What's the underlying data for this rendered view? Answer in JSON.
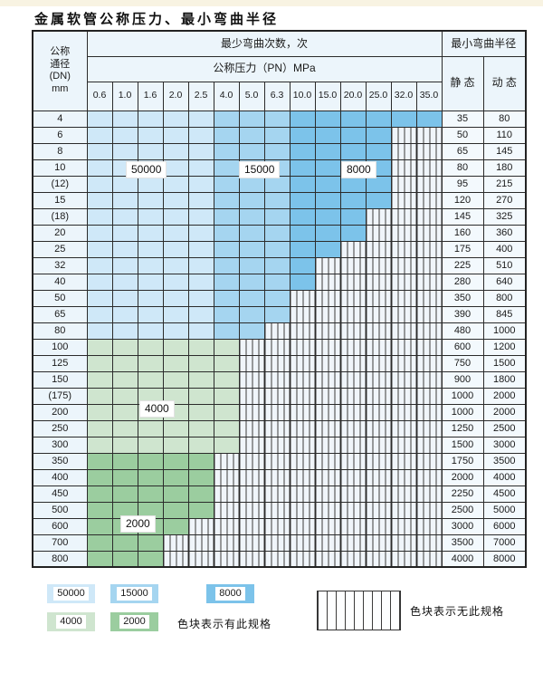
{
  "title": "金属软管公称压力、最小弯曲半径",
  "colors": {
    "b1": "#cfe8f8",
    "b2": "#a5d5f0",
    "b3": "#7cc3ea",
    "g1": "#cfe5cf",
    "g2": "#9bcd9f",
    "hatch_bg": "#f0f5fa",
    "header_bg": "#ecf5fb",
    "grid": "#2b2b2b"
  },
  "table": {
    "dn_head": {
      "l1": "公称",
      "l2": "通径",
      "l3": "(DN)",
      "l4": "mm"
    },
    "bend_cycles_header": "最少弯曲次数，次",
    "pressure_header": "公称压力（PN）MPa",
    "min_radius_header": "最小弯曲半径",
    "static_header": "静 态",
    "dynamic_header": "动 态",
    "pressure_columns": [
      "0.6",
      "1.0",
      "1.6",
      "2.0",
      "2.5",
      "4.0",
      "5.0",
      "6.3",
      "10.0",
      "15.0",
      "20.0",
      "25.0",
      "32.0",
      "35.0"
    ],
    "rows": [
      {
        "dn": "4",
        "bands": [
          [
            "b1",
            5
          ],
          [
            "b2",
            3
          ],
          [
            "b3",
            6
          ]
        ],
        "static": "35",
        "dynamic": "80"
      },
      {
        "dn": "6",
        "bands": [
          [
            "b1",
            5
          ],
          [
            "b2",
            3
          ],
          [
            "b3",
            4
          ],
          [
            "h",
            2
          ]
        ],
        "static": "50",
        "dynamic": "110"
      },
      {
        "dn": "8",
        "bands": [
          [
            "b1",
            5
          ],
          [
            "b2",
            3
          ],
          [
            "b3",
            4
          ],
          [
            "h",
            2
          ]
        ],
        "static": "65",
        "dynamic": "145"
      },
      {
        "dn": "10",
        "bands": [
          [
            "b1",
            5
          ],
          [
            "b2",
            3
          ],
          [
            "b3",
            4
          ],
          [
            "h",
            2
          ]
        ],
        "static": "80",
        "dynamic": "180"
      },
      {
        "dn": "(12)",
        "bands": [
          [
            "b1",
            5
          ],
          [
            "b2",
            3
          ],
          [
            "b3",
            4
          ],
          [
            "h",
            2
          ]
        ],
        "static": "95",
        "dynamic": "215"
      },
      {
        "dn": "15",
        "bands": [
          [
            "b1",
            5
          ],
          [
            "b2",
            3
          ],
          [
            "b3",
            4
          ],
          [
            "h",
            2
          ]
        ],
        "static": "120",
        "dynamic": "270"
      },
      {
        "dn": "(18)",
        "bands": [
          [
            "b1",
            5
          ],
          [
            "b2",
            3
          ],
          [
            "b3",
            3
          ],
          [
            "h",
            3
          ]
        ],
        "static": "145",
        "dynamic": "325"
      },
      {
        "dn": "20",
        "bands": [
          [
            "b1",
            5
          ],
          [
            "b2",
            3
          ],
          [
            "b3",
            3
          ],
          [
            "h",
            3
          ]
        ],
        "static": "160",
        "dynamic": "360"
      },
      {
        "dn": "25",
        "bands": [
          [
            "b1",
            5
          ],
          [
            "b2",
            3
          ],
          [
            "b3",
            2
          ],
          [
            "h",
            4
          ]
        ],
        "static": "175",
        "dynamic": "400"
      },
      {
        "dn": "32",
        "bands": [
          [
            "b1",
            5
          ],
          [
            "b2",
            3
          ],
          [
            "b3",
            1
          ],
          [
            "h",
            5
          ]
        ],
        "static": "225",
        "dynamic": "510"
      },
      {
        "dn": "40",
        "bands": [
          [
            "b1",
            5
          ],
          [
            "b2",
            3
          ],
          [
            "b3",
            1
          ],
          [
            "h",
            5
          ]
        ],
        "static": "280",
        "dynamic": "640"
      },
      {
        "dn": "50",
        "bands": [
          [
            "b1",
            5
          ],
          [
            "b2",
            3
          ],
          [
            "h",
            6
          ]
        ],
        "static": "350",
        "dynamic": "800"
      },
      {
        "dn": "65",
        "bands": [
          [
            "b1",
            5
          ],
          [
            "b2",
            3
          ],
          [
            "h",
            6
          ]
        ],
        "static": "390",
        "dynamic": "845"
      },
      {
        "dn": "80",
        "bands": [
          [
            "b1",
            5
          ],
          [
            "b2",
            2
          ],
          [
            "h",
            7
          ]
        ],
        "static": "480",
        "dynamic": "1000"
      },
      {
        "dn": "100",
        "bands": [
          [
            "g1",
            6
          ],
          [
            "h",
            8
          ]
        ],
        "static": "600",
        "dynamic": "1200"
      },
      {
        "dn": "125",
        "bands": [
          [
            "g1",
            6
          ],
          [
            "h",
            8
          ]
        ],
        "static": "750",
        "dynamic": "1500"
      },
      {
        "dn": "150",
        "bands": [
          [
            "g1",
            6
          ],
          [
            "h",
            8
          ]
        ],
        "static": "900",
        "dynamic": "1800"
      },
      {
        "dn": "(175)",
        "bands": [
          [
            "g1",
            6
          ],
          [
            "h",
            8
          ]
        ],
        "static": "1000",
        "dynamic": "2000"
      },
      {
        "dn": "200",
        "bands": [
          [
            "g1",
            6
          ],
          [
            "h",
            8
          ]
        ],
        "static": "1000",
        "dynamic": "2000"
      },
      {
        "dn": "250",
        "bands": [
          [
            "g1",
            6
          ],
          [
            "h",
            8
          ]
        ],
        "static": "1250",
        "dynamic": "2500"
      },
      {
        "dn": "300",
        "bands": [
          [
            "g1",
            6
          ],
          [
            "h",
            8
          ]
        ],
        "static": "1500",
        "dynamic": "3000"
      },
      {
        "dn": "350",
        "bands": [
          [
            "g2",
            5
          ],
          [
            "h",
            9
          ]
        ],
        "static": "1750",
        "dynamic": "3500"
      },
      {
        "dn": "400",
        "bands": [
          [
            "g2",
            5
          ],
          [
            "h",
            9
          ]
        ],
        "static": "2000",
        "dynamic": "4000"
      },
      {
        "dn": "450",
        "bands": [
          [
            "g2",
            5
          ],
          [
            "h",
            9
          ]
        ],
        "static": "2250",
        "dynamic": "4500"
      },
      {
        "dn": "500",
        "bands": [
          [
            "g2",
            5
          ],
          [
            "h",
            9
          ]
        ],
        "static": "2500",
        "dynamic": "5000"
      },
      {
        "dn": "600",
        "bands": [
          [
            "g2",
            4
          ],
          [
            "h",
            10
          ]
        ],
        "static": "3000",
        "dynamic": "6000"
      },
      {
        "dn": "700",
        "bands": [
          [
            "g2",
            3
          ],
          [
            "h",
            11
          ]
        ],
        "static": "3500",
        "dynamic": "7000"
      },
      {
        "dn": "800",
        "bands": [
          [
            "g2",
            3
          ],
          [
            "h",
            11
          ]
        ],
        "static": "4000",
        "dynamic": "8000"
      }
    ]
  },
  "overlay_labels": {
    "l50000": "50000",
    "l15000": "15000",
    "l8000": "8000",
    "l4000": "4000",
    "l2000": "2000"
  },
  "legend": {
    "items": [
      {
        "label": "50000",
        "color_key": "b1"
      },
      {
        "label": "15000",
        "color_key": "b2"
      },
      {
        "label": "8000",
        "color_key": "b3"
      },
      {
        "label": "4000",
        "color_key": "g1"
      },
      {
        "label": "2000",
        "color_key": "g2"
      }
    ],
    "has_spec_text": "色块表示有此规格",
    "no_spec_text": "色块表示无此规格"
  }
}
